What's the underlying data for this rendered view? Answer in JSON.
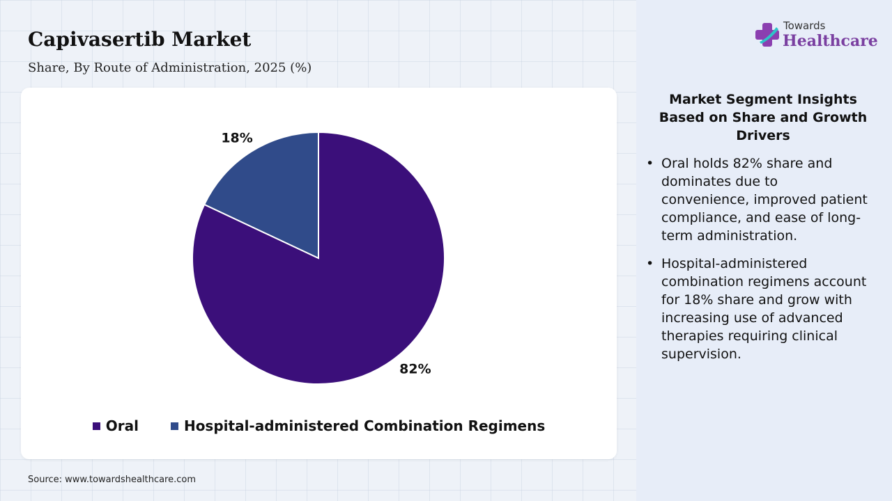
{
  "header": {
    "title": "Capivasertib Market",
    "subtitle": "Share, By Route of Administration, 2025 (%)"
  },
  "chart_data": {
    "type": "pie",
    "title": "Capivasertib Market",
    "subtitle": "Share, By Route of Administration, 2025 (%)",
    "slices": [
      {
        "name": "Oral",
        "value": 82,
        "label": "82%",
        "color": "#3b0f7a"
      },
      {
        "name": "Hospital-administered Combination Regimens",
        "value": 18,
        "label": "18%",
        "color": "#304b8a"
      }
    ],
    "start_angle": "12 o'clock",
    "direction": "clockwise",
    "legend_position": "bottom"
  },
  "legend": {
    "items": [
      {
        "label": "Oral",
        "color": "#3b0f7a"
      },
      {
        "label": "Hospital-administered Combination Regimens",
        "color": "#304b8a"
      }
    ]
  },
  "source": "Source: www.towardshealthcare.com",
  "logo": {
    "line1": "Towards",
    "line2": "Healthcare",
    "icon": "healthcare-cross-icon"
  },
  "insights": {
    "title": "Market Segment Insights Based on Share and Growth Drivers",
    "bullets": [
      "Oral holds 82% share and dominates due to convenience, improved patient compliance, and ease of long-term administration.",
      "Hospital-administered combination regimens account for 18% share and grow with increasing use of advanced therapies requiring clinical supervision."
    ]
  }
}
